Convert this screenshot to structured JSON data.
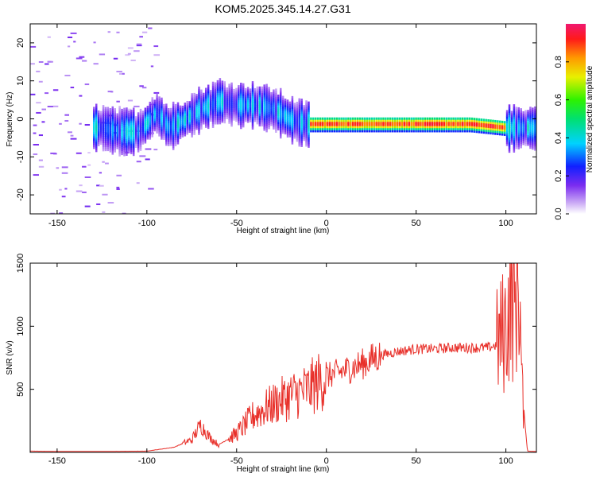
{
  "title": "KOM5.2025.345.14.27.G31",
  "colors": {
    "snr_line": "#e8302a",
    "axis": "#000000"
  },
  "chart_data": [
    {
      "type": "heatmap",
      "xlabel": "Height of straight line (km)",
      "ylabel": "Frequency (Hz)",
      "xlim": [
        -165,
        117
      ],
      "ylim": [
        -25,
        25
      ],
      "xticks": [
        -150,
        -100,
        -50,
        0,
        50,
        100
      ],
      "xtick_labels": [
        "-150",
        "-100",
        "-50",
        "0",
        "50",
        "100"
      ],
      "yticks": [
        -20,
        -10,
        0,
        10,
        20
      ],
      "ytick_labels": [
        "-20",
        "-10",
        "0",
        "10",
        "20"
      ],
      "ridge": [
        {
          "x": -125,
          "y": -2
        },
        {
          "x": -115,
          "y": -3
        },
        {
          "x": -105,
          "y": -3
        },
        {
          "x": -95,
          "y": 2
        },
        {
          "x": -88,
          "y": -2
        },
        {
          "x": -80,
          "y": 0
        },
        {
          "x": -70,
          "y": 3
        },
        {
          "x": -60,
          "y": 5
        },
        {
          "x": -50,
          "y": 4
        },
        {
          "x": -40,
          "y": 4
        },
        {
          "x": -30,
          "y": 3
        },
        {
          "x": -20,
          "y": 0
        },
        {
          "x": -10,
          "y": -1
        },
        {
          "x": 0,
          "y": -1
        },
        {
          "x": 20,
          "y": -1
        },
        {
          "x": 40,
          "y": -1
        },
        {
          "x": 60,
          "y": -1
        },
        {
          "x": 80,
          "y": -1
        },
        {
          "x": 100,
          "y": -2
        },
        {
          "x": 110,
          "y": -2
        }
      ],
      "colorbar": {
        "label": "Normalized spectral amplitude",
        "range": [
          0,
          1
        ],
        "ticks": [
          0.0,
          0.2,
          0.4,
          0.6,
          0.8
        ],
        "tick_labels": [
          "0.0",
          "0.2",
          "0.4",
          "0.6",
          "0.8"
        ]
      }
    },
    {
      "type": "line",
      "xlabel": "Height of straight line (km)",
      "ylabel": "SNR (v/v)",
      "xlim": [
        -165,
        117
      ],
      "ylim": [
        0,
        1500
      ],
      "xticks": [
        -150,
        -100,
        -50,
        0,
        50,
        100
      ],
      "xtick_labels": [
        "-150",
        "-100",
        "-50",
        "0",
        "50",
        "100"
      ],
      "yticks": [
        500,
        1000,
        1500
      ],
      "ytick_labels": [
        "500",
        "1000",
        "1500"
      ],
      "series": [
        {
          "name": "SNR",
          "x": [
            -165,
            -150,
            -120,
            -100,
            -85,
            -75,
            -70,
            -65,
            -60,
            -50,
            -40,
            -30,
            -20,
            -10,
            0,
            10,
            20,
            30,
            40,
            50,
            60,
            70,
            80,
            90,
            95,
            100,
            103,
            105,
            107,
            109,
            112,
            117
          ],
          "y": [
            10,
            8,
            8,
            10,
            40,
            100,
            220,
            120,
            60,
            150,
            300,
            380,
            450,
            500,
            600,
            650,
            700,
            770,
            800,
            820,
            820,
            830,
            830,
            830,
            850,
            1000,
            1250,
            1100,
            1500,
            500,
            10,
            8
          ]
        }
      ]
    }
  ]
}
